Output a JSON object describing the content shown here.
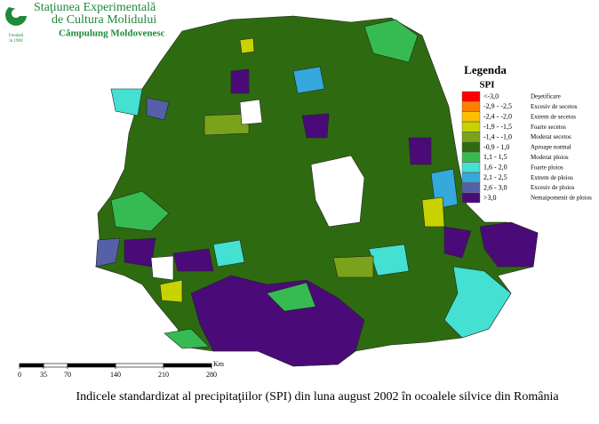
{
  "header": {
    "line1": "Staţiunea Experimentală",
    "line2": "de Cultura Molidului",
    "line3": "Câmpulung Moldovenesc"
  },
  "legend": {
    "title": "Legenda",
    "subtitle": "SPI",
    "items": [
      {
        "range": "<-3,0",
        "label": "Deşetificare",
        "color": "#ff0000"
      },
      {
        "range": "-2,9 - -2,5",
        "label": "Excesiv de secetos",
        "color": "#ff7f00"
      },
      {
        "range": "-2,4 - -2,0",
        "label": "Extrem de secetos",
        "color": "#ffc000"
      },
      {
        "range": "-1,9 - -1,5",
        "label": "Foarte secetos",
        "color": "#c8d200"
      },
      {
        "range": "-1,4 - -1,0",
        "label": "Moderat secetos",
        "color": "#7aa21a"
      },
      {
        "range": "-0,9 - 1,0",
        "label": "Aproape normal",
        "color": "#2e6b10"
      },
      {
        "range": "1,1 - 1,5",
        "label": "Moderat ploios",
        "color": "#36bb52"
      },
      {
        "range": "1,6 - 2,0",
        "label": "Foarte ploios",
        "color": "#44e0d2"
      },
      {
        "range": "2,1 - 2,5",
        "label": "Extrem de ploios",
        "color": "#35a8dc"
      },
      {
        "range": "2,6 - 3,0",
        "label": "Excesiv de ploios",
        "color": "#5560a8"
      },
      {
        "range": ">3,0",
        "label": "Nemaipomenit de ploios",
        "color": "#4a0b78"
      }
    ]
  },
  "scale": {
    "ticks": [
      0,
      35,
      70,
      140,
      210,
      280
    ],
    "unit": "Km"
  },
  "caption": "Indicele standardizat al precipitaţiilor (SPI) din luna august 2002 în ocoalele silvice din România"
}
